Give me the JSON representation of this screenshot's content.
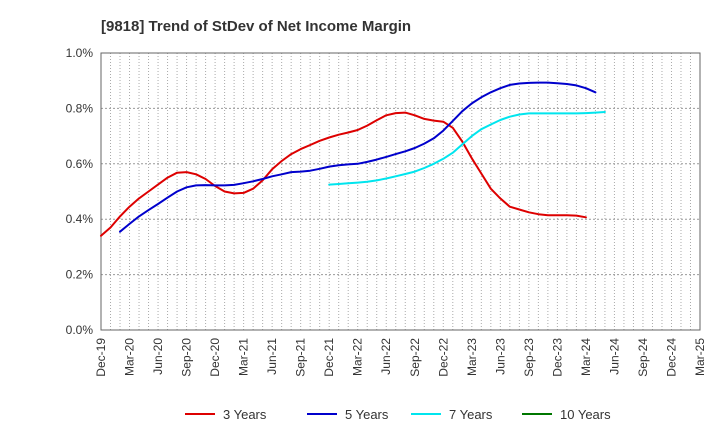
{
  "chart_data": {
    "type": "line",
    "title": "[9818]  Trend of StDev of Net Income Margin",
    "xlabel": "",
    "ylabel": "",
    "ylim": [
      0.0,
      1.0
    ],
    "y_ticks": [
      "0.0%",
      "0.2%",
      "0.4%",
      "0.6%",
      "0.8%",
      "1.0%"
    ],
    "y_tick_values": [
      0.0,
      0.2,
      0.4,
      0.6,
      0.8,
      1.0
    ],
    "x_ticks": [
      "Dec-19",
      "Mar-20",
      "Jun-20",
      "Sep-20",
      "Dec-20",
      "Mar-21",
      "Jun-21",
      "Sep-21",
      "Dec-21",
      "Mar-22",
      "Jun-22",
      "Sep-22",
      "Dec-22",
      "Mar-23",
      "Jun-23",
      "Sep-23",
      "Dec-23",
      "Mar-24",
      "Jun-24",
      "Sep-24",
      "Dec-24",
      "Mar-25"
    ],
    "grid": true,
    "legend_position": "bottom",
    "series": [
      {
        "name": "3 Years",
        "color": "#dd0000",
        "start_index": 0,
        "values": [
          0.34,
          0.37,
          0.41,
          0.445,
          0.475,
          0.5,
          0.525,
          0.55,
          0.568,
          0.57,
          0.562,
          0.545,
          0.52,
          0.5,
          0.493,
          0.495,
          0.51,
          0.54,
          0.58,
          0.61,
          0.635,
          0.653,
          0.668,
          0.683,
          0.695,
          0.705,
          0.713,
          0.722,
          0.738,
          0.757,
          0.775,
          0.783,
          0.785,
          0.775,
          0.762,
          0.756,
          0.752,
          0.73,
          0.68,
          0.62,
          0.565,
          0.51,
          0.475,
          0.445,
          0.435,
          0.425,
          0.418,
          0.414,
          0.414,
          0.414,
          0.413,
          0.407
        ]
      },
      {
        "name": "5 Years",
        "color": "#0000cc",
        "start_index": 2,
        "values": [
          0.355,
          0.383,
          0.41,
          0.433,
          0.455,
          0.478,
          0.5,
          0.515,
          0.522,
          0.523,
          0.522,
          0.522,
          0.524,
          0.53,
          0.537,
          0.545,
          0.555,
          0.562,
          0.57,
          0.572,
          0.575,
          0.582,
          0.59,
          0.595,
          0.598,
          0.6,
          0.607,
          0.615,
          0.625,
          0.635,
          0.645,
          0.657,
          0.673,
          0.692,
          0.72,
          0.755,
          0.79,
          0.818,
          0.84,
          0.858,
          0.873,
          0.885,
          0.89,
          0.892,
          0.893,
          0.893,
          0.891,
          0.888,
          0.883,
          0.873,
          0.858
        ]
      },
      {
        "name": "7 Years",
        "color": "#00e5ee",
        "start_index": 24,
        "values": [
          0.525,
          0.527,
          0.53,
          0.532,
          0.535,
          0.54,
          0.547,
          0.555,
          0.563,
          0.572,
          0.585,
          0.6,
          0.618,
          0.64,
          0.67,
          0.7,
          0.725,
          0.742,
          0.758,
          0.77,
          0.778,
          0.782,
          0.782,
          0.782,
          0.782,
          0.782,
          0.782,
          0.783,
          0.785,
          0.787
        ]
      },
      {
        "name": "10 Years",
        "color": "#007700",
        "start_index": 0,
        "values": []
      }
    ]
  }
}
